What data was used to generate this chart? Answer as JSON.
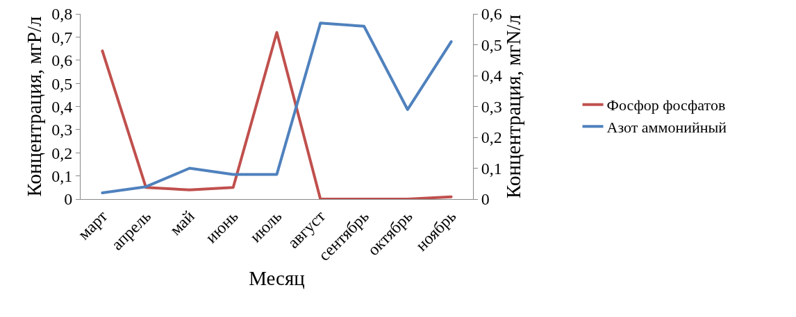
{
  "chart_data": {
    "type": "line",
    "xlabel": "Месяц",
    "ylabel": "Концентрация, мгР/л",
    "y2label": "Концентрация, мгN/л",
    "categories": [
      "март",
      "апрель",
      "май",
      "июнь",
      "июль",
      "август",
      "сентябрь",
      "октябрь",
      "ноябрь"
    ],
    "series": [
      {
        "name": "Фосфор фосфатов",
        "color": "#c0504d",
        "values": [
          0.64,
          0.05,
          0.04,
          0.05,
          0.72,
          0,
          0,
          0,
          0.01
        ]
      },
      {
        "name": "Азот аммонийный",
        "color": "#4f81bd",
        "axis": "y2",
        "values": [
          0.02,
          0.04,
          0.1,
          0.08,
          0.08,
          0.57,
          0.56,
          0.29,
          0.51
        ]
      }
    ],
    "ylim": [
      0,
      0.8
    ],
    "yticks": [
      {
        "value": 0,
        "label": "0"
      },
      {
        "value": 0.1,
        "label": "0,1"
      },
      {
        "value": 0.2,
        "label": "0,2"
      },
      {
        "value": 0.3,
        "label": "0,3"
      },
      {
        "value": 0.4,
        "label": "0,4"
      },
      {
        "value": 0.5,
        "label": "0,5"
      },
      {
        "value": 0.6,
        "label": "0,6"
      },
      {
        "value": 0.7,
        "label": "0,7"
      },
      {
        "value": 0.8,
        "label": "0,8"
      }
    ],
    "y2lim": [
      0,
      0.6
    ],
    "y2ticks": [
      {
        "value": 0,
        "label": "0"
      },
      {
        "value": 0.1,
        "label": "0,1"
      },
      {
        "value": 0.2,
        "label": "0,2"
      },
      {
        "value": 0.3,
        "label": "0,3"
      },
      {
        "value": 0.4,
        "label": "0,4"
      },
      {
        "value": 0.5,
        "label": "0,5"
      },
      {
        "value": 0.6,
        "label": "0,6"
      }
    ],
    "grid": false,
    "legend": "right",
    "marker": "none",
    "line_style": "solid"
  }
}
